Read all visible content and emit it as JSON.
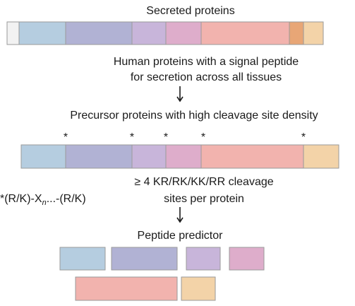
{
  "title": "Secreted proteins",
  "step1": {
    "lines": [
      "Human proteins with a signal peptide",
      "for secretion across all tissues"
    ]
  },
  "step2": {
    "title": "Precursor proteins with high cleavage site density",
    "markers": [
      "*",
      "*",
      "*",
      "*",
      "*"
    ]
  },
  "step3": {
    "lines": [
      "≥ 4 KR/RK/KK/RR cleavage",
      "sites per protein"
    ],
    "motif": {
      "before": "*(R/K)-X",
      "subscript": "n",
      "after": "...-(R/K)"
    }
  },
  "step4": {
    "title": "Peptide predictor"
  }
}
